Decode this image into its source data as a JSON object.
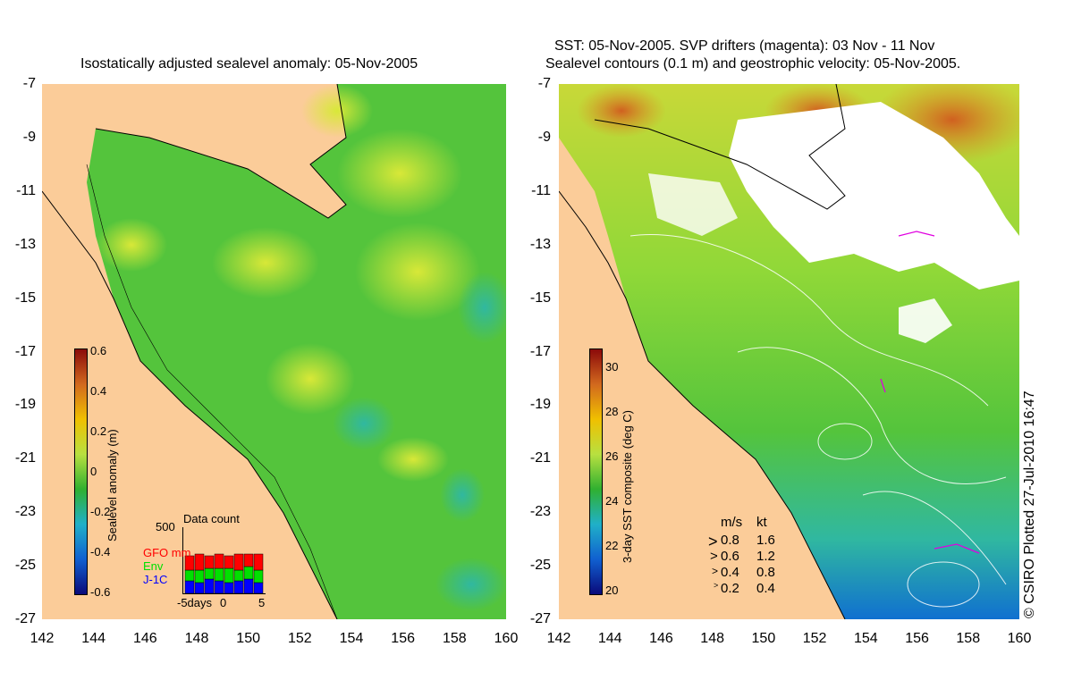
{
  "left_panel": {
    "title": "Isostatically adjusted sealevel anomaly: 05-Nov-2005",
    "colorbar": {
      "label": "Sealevel anomaly (m)",
      "ticks": [
        "0.6",
        "0.4",
        "0.2",
        "0",
        "-0.2",
        "-0.4",
        "-0.6"
      ],
      "colors": [
        "#8b0a0a",
        "#d2691e",
        "#f0c000",
        "#b8e040",
        "#30b030",
        "#20b0c8",
        "#1060d0",
        "#0a0a7a"
      ]
    },
    "data_count": {
      "title": "Data count",
      "max_label": "500",
      "legend": [
        {
          "label": "GFO mm",
          "color": "#ff0000"
        },
        {
          "label": "Env",
          "color": "#00e000"
        },
        {
          "label": "J-1C",
          "color": "#0000ff"
        }
      ],
      "x_labels": [
        "-5days",
        "0",
        "5"
      ]
    }
  },
  "right_panel": {
    "title_line1": "SST: 05-Nov-2005. SVP drifters (magenta): 03 Nov - 11 Nov",
    "title_line2": "Sealevel contours (0.1 m) and geostrophic velocity: 05-Nov-2005.",
    "colorbar": {
      "label": "3-day SST composite (deg C)",
      "ticks": [
        "30",
        "28",
        "26",
        "24",
        "22",
        "20"
      ],
      "colors": [
        "#8b0a0a",
        "#d2691e",
        "#f0c000",
        "#b8e040",
        "#30b030",
        "#20b0c8",
        "#1060d0",
        "#0a0a7a"
      ]
    },
    "velocity_legend": {
      "header_ms": "m/s",
      "header_kt": "kt",
      "rows": [
        {
          "ms": "0.8",
          "kt": "1.6"
        },
        {
          "ms": "0.6",
          "kt": "1.2"
        },
        {
          "ms": "0.4",
          "kt": "0.8"
        },
        {
          "ms": "0.2",
          "kt": "0.4"
        }
      ]
    },
    "credit": "© CSIRO Plotted 27-Jul-2010 16:47"
  },
  "axes": {
    "y_ticks": [
      "-7",
      "-9",
      "-11",
      "-13",
      "-15",
      "-17",
      "-19",
      "-21",
      "-23",
      "-25",
      "-27"
    ],
    "x_ticks": [
      "142",
      "144",
      "146",
      "148",
      "150",
      "152",
      "154",
      "156",
      "158",
      "160"
    ]
  },
  "colors": {
    "land": "#fbcc99",
    "ocean_base": "#54c43c",
    "ocean_light": "#90d838",
    "cloud": "#ffffff"
  }
}
